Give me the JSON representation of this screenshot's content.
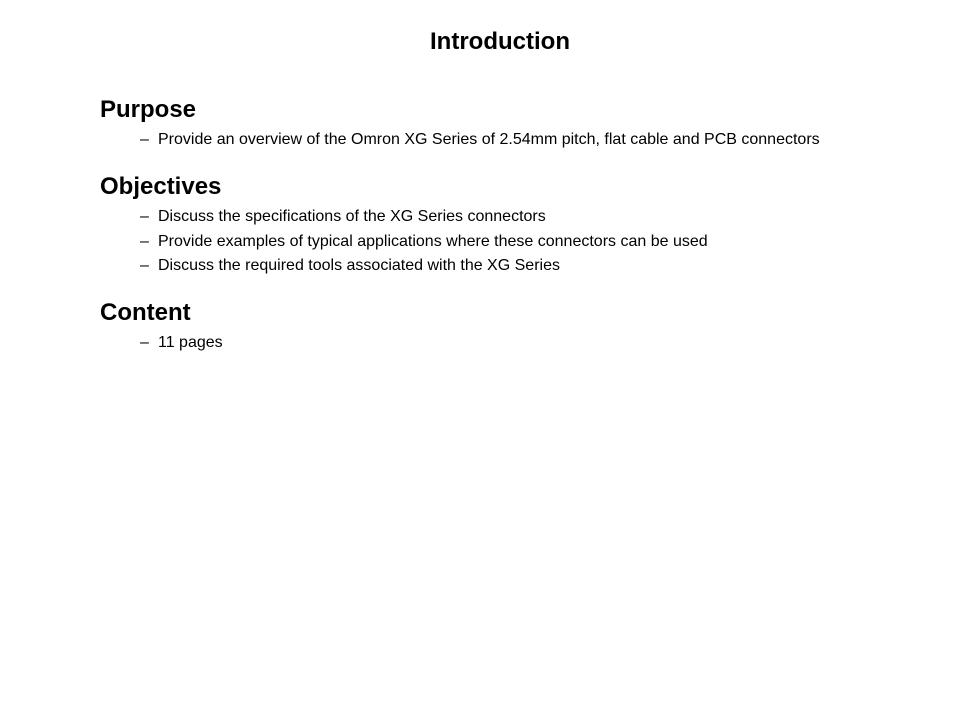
{
  "title": "Introduction",
  "sections": [
    {
      "heading": "Purpose",
      "items": [
        "Provide an overview of the Omron XG Series of 2.54mm pitch, flat cable and PCB connectors"
      ]
    },
    {
      "heading": "Objectives",
      "items": [
        "Discuss the specifications of the XG Series connectors",
        "Provide examples of typical applications where these connectors can be used",
        "Discuss the required tools associated with the XG Series"
      ]
    },
    {
      "heading": "Content",
      "items": [
        "11 pages"
      ]
    }
  ]
}
